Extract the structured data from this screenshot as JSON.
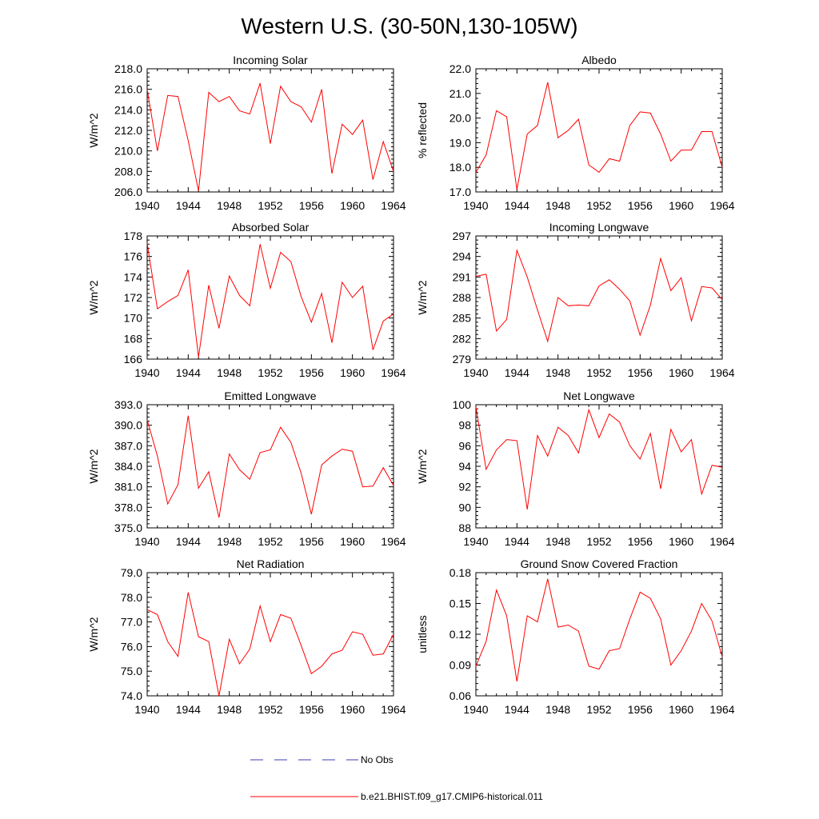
{
  "title": "Western U.S. (30-50N,130-105W)",
  "legend": [
    {
      "label": "No Obs",
      "color": "#3b3bb0",
      "dashed": true
    },
    {
      "label": "b.e21.BHIST.f09_g17.CMIP6-historical.011",
      "color": "#ff0000",
      "dashed": false
    }
  ],
  "chart_data": [
    {
      "type": "line",
      "title": "Incoming Solar",
      "xlabel": "",
      "ylabel": "W/m^2",
      "xlim": [
        1940,
        1964
      ],
      "ylim": [
        206,
        218
      ],
      "xticks": [
        1940,
        1944,
        1948,
        1952,
        1956,
        1960,
        1964
      ],
      "yticks": [
        "206.0",
        "208.0",
        "210.0",
        "212.0",
        "214.0",
        "216.0",
        "218.0"
      ],
      "x": [
        1940,
        1941,
        1942,
        1943,
        1944,
        1945,
        1946,
        1947,
        1948,
        1949,
        1950,
        1951,
        1952,
        1953,
        1954,
        1955,
        1956,
        1957,
        1958,
        1959,
        1960,
        1961,
        1962,
        1963,
        1964
      ],
      "series": [
        {
          "color": "#ff0000",
          "values": [
            216.0,
            210.0,
            215.4,
            215.3,
            211.0,
            206.1,
            215.7,
            214.8,
            215.3,
            213.9,
            213.6,
            216.6,
            210.7,
            216.3,
            214.8,
            214.3,
            212.8,
            216.0,
            207.8,
            212.6,
            211.6,
            213.0,
            207.2,
            210.9,
            208.0
          ]
        }
      ]
    },
    {
      "type": "line",
      "title": "Albedo",
      "xlabel": "",
      "ylabel": "% reflected",
      "xlim": [
        1940,
        1964
      ],
      "ylim": [
        17,
        22
      ],
      "xticks": [
        1940,
        1944,
        1948,
        1952,
        1956,
        1960,
        1964
      ],
      "yticks": [
        "17.0",
        "18.0",
        "19.0",
        "20.0",
        "21.0",
        "22.0"
      ],
      "x": [
        1940,
        1941,
        1942,
        1943,
        1944,
        1945,
        1946,
        1947,
        1948,
        1949,
        1950,
        1951,
        1952,
        1953,
        1954,
        1955,
        1956,
        1957,
        1958,
        1959,
        1960,
        1961,
        1962,
        1963,
        1964
      ],
      "series": [
        {
          "color": "#ff0000",
          "values": [
            17.8,
            18.5,
            20.3,
            20.05,
            17.1,
            19.35,
            19.7,
            21.45,
            19.2,
            19.5,
            19.95,
            18.1,
            17.8,
            18.35,
            18.25,
            19.7,
            20.25,
            20.2,
            19.35,
            18.25,
            18.7,
            18.7,
            19.45,
            19.45,
            18.0
          ]
        }
      ]
    },
    {
      "type": "line",
      "title": "Absorbed Solar",
      "xlabel": "",
      "ylabel": "W/m^2",
      "xlim": [
        1940,
        1964
      ],
      "ylim": [
        166,
        178
      ],
      "xticks": [
        1940,
        1944,
        1948,
        1952,
        1956,
        1960,
        1964
      ],
      "yticks": [
        "166",
        "168",
        "170",
        "172",
        "174",
        "176",
        "178"
      ],
      "x": [
        1940,
        1941,
        1942,
        1943,
        1944,
        1945,
        1946,
        1947,
        1948,
        1949,
        1950,
        1951,
        1952,
        1953,
        1954,
        1955,
        1956,
        1957,
        1958,
        1959,
        1960,
        1961,
        1962,
        1963,
        1964
      ],
      "series": [
        {
          "color": "#ff0000",
          "values": [
            177.3,
            170.9,
            171.6,
            172.2,
            174.7,
            166.2,
            173.2,
            169.0,
            174.1,
            172.2,
            171.2,
            177.2,
            172.9,
            176.4,
            175.5,
            172.1,
            169.6,
            172.4,
            167.6,
            173.5,
            172.0,
            173.1,
            166.9,
            169.7,
            170.4
          ]
        }
      ]
    },
    {
      "type": "line",
      "title": "Incoming Longwave",
      "xlabel": "",
      "ylabel": "W/m^2",
      "xlim": [
        1940,
        1964
      ],
      "ylim": [
        279,
        297
      ],
      "xticks": [
        1940,
        1944,
        1948,
        1952,
        1956,
        1960,
        1964
      ],
      "yticks": [
        "279",
        "282",
        "285",
        "288",
        "291",
        "294",
        "297"
      ],
      "x": [
        1940,
        1941,
        1942,
        1943,
        1944,
        1945,
        1946,
        1947,
        1948,
        1949,
        1950,
        1951,
        1952,
        1953,
        1954,
        1955,
        1956,
        1957,
        1958,
        1959,
        1960,
        1961,
        1962,
        1963,
        1964
      ],
      "series": [
        {
          "color": "#ff0000",
          "values": [
            291.1,
            291.4,
            283.1,
            284.8,
            294.9,
            291.0,
            286.2,
            281.6,
            288.0,
            286.8,
            286.9,
            286.8,
            289.7,
            290.6,
            289.2,
            287.5,
            282.5,
            286.9,
            293.7,
            289.0,
            290.9,
            284.6,
            289.6,
            289.4,
            287.7
          ]
        }
      ]
    },
    {
      "type": "line",
      "title": "Emitted Longwave",
      "xlabel": "",
      "ylabel": "W/m^2",
      "xlim": [
        1940,
        1964
      ],
      "ylim": [
        375,
        393
      ],
      "xticks": [
        1940,
        1944,
        1948,
        1952,
        1956,
        1960,
        1964
      ],
      "yticks": [
        "375.0",
        "378.0",
        "381.0",
        "384.0",
        "387.0",
        "390.0",
        "393.0"
      ],
      "x": [
        1940,
        1941,
        1942,
        1943,
        1944,
        1945,
        1946,
        1947,
        1948,
        1949,
        1950,
        1951,
        1952,
        1953,
        1954,
        1955,
        1956,
        1957,
        1958,
        1959,
        1960,
        1961,
        1962,
        1963,
        1964
      ],
      "series": [
        {
          "color": "#ff0000",
          "values": [
            390.8,
            385.5,
            378.5,
            381.3,
            391.4,
            380.8,
            383.2,
            376.5,
            385.8,
            383.5,
            382.1,
            386.0,
            386.4,
            389.7,
            387.5,
            383.0,
            377.0,
            384.2,
            385.5,
            386.5,
            386.2,
            381.0,
            381.1,
            383.8,
            381.2
          ]
        }
      ]
    },
    {
      "type": "line",
      "title": "Net Longwave",
      "xlabel": "",
      "ylabel": "W/m^2",
      "xlim": [
        1940,
        1964
      ],
      "ylim": [
        88,
        100
      ],
      "xticks": [
        1940,
        1944,
        1948,
        1952,
        1956,
        1960,
        1964
      ],
      "yticks": [
        "88",
        "90",
        "92",
        "94",
        "96",
        "98",
        "100"
      ],
      "x": [
        1940,
        1941,
        1942,
        1943,
        1944,
        1945,
        1946,
        1947,
        1948,
        1949,
        1950,
        1951,
        1952,
        1953,
        1954,
        1955,
        1956,
        1957,
        1958,
        1959,
        1960,
        1961,
        1962,
        1963,
        1964
      ],
      "series": [
        {
          "color": "#ff0000",
          "values": [
            99.8,
            93.7,
            95.6,
            96.6,
            96.5,
            89.8,
            97.0,
            95.0,
            97.8,
            97.0,
            95.3,
            99.5,
            96.8,
            99.1,
            98.3,
            96.0,
            94.7,
            97.2,
            91.8,
            97.6,
            95.4,
            96.6,
            91.3,
            94.1,
            93.9
          ]
        }
      ]
    },
    {
      "type": "line",
      "title": "Net Radiation",
      "xlabel": "",
      "ylabel": "W/m^2",
      "xlim": [
        1940,
        1964
      ],
      "ylim": [
        74,
        79
      ],
      "xticks": [
        1940,
        1944,
        1948,
        1952,
        1956,
        1960,
        1964
      ],
      "yticks": [
        "74.0",
        "75.0",
        "76.0",
        "77.0",
        "78.0",
        "79.0"
      ],
      "x": [
        1940,
        1941,
        1942,
        1943,
        1944,
        1945,
        1946,
        1947,
        1948,
        1949,
        1950,
        1951,
        1952,
        1953,
        1954,
        1955,
        1956,
        1957,
        1958,
        1959,
        1960,
        1961,
        1962,
        1963,
        1964
      ],
      "series": [
        {
          "color": "#ff0000",
          "values": [
            77.5,
            77.3,
            76.2,
            75.6,
            78.2,
            76.4,
            76.2,
            74.0,
            76.3,
            75.3,
            75.9,
            77.65,
            76.2,
            77.3,
            77.15,
            76.05,
            74.9,
            75.2,
            75.7,
            75.85,
            76.6,
            76.5,
            75.65,
            75.7,
            76.5
          ]
        }
      ]
    },
    {
      "type": "line",
      "title": "Ground Snow Covered Fraction",
      "xlabel": "",
      "ylabel": "unitless",
      "xlim": [
        1940,
        1964
      ],
      "ylim": [
        0.06,
        0.18
      ],
      "xticks": [
        1940,
        1944,
        1948,
        1952,
        1956,
        1960,
        1964
      ],
      "yticks": [
        "0.06",
        "0.09",
        "0.12",
        "0.15",
        "0.18"
      ],
      "x": [
        1940,
        1941,
        1942,
        1943,
        1944,
        1945,
        1946,
        1947,
        1948,
        1949,
        1950,
        1951,
        1952,
        1953,
        1954,
        1955,
        1956,
        1957,
        1958,
        1959,
        1960,
        1961,
        1962,
        1963,
        1964
      ],
      "series": [
        {
          "color": "#ff0000",
          "values": [
            0.089,
            0.113,
            0.163,
            0.138,
            0.074,
            0.138,
            0.132,
            0.174,
            0.127,
            0.129,
            0.123,
            0.089,
            0.086,
            0.104,
            0.106,
            0.135,
            0.161,
            0.155,
            0.135,
            0.09,
            0.104,
            0.123,
            0.15,
            0.133,
            0.098
          ]
        }
      ]
    }
  ]
}
